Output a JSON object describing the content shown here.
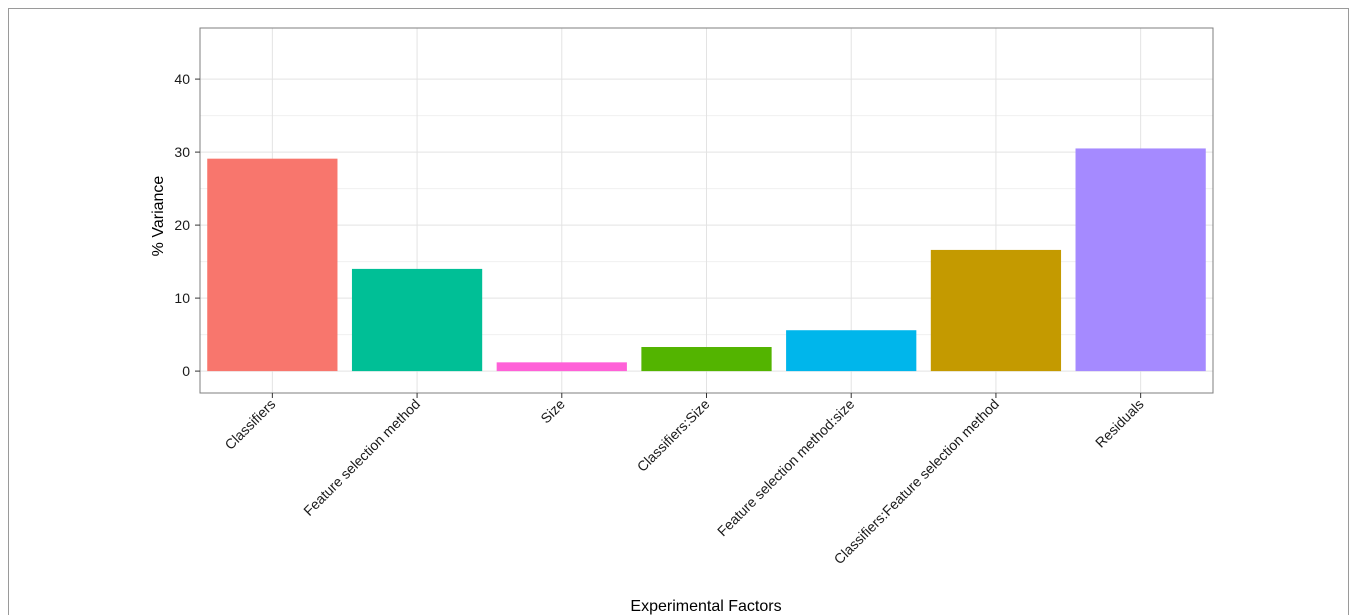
{
  "chart_data": {
    "type": "bar",
    "title": "",
    "xlabel": "Experimental Factors",
    "ylabel": "% Variance",
    "ylim": [
      -3,
      47
    ],
    "yticks": [
      0,
      10,
      20,
      30,
      40
    ],
    "grid": true,
    "legend": "none",
    "categories": [
      "Classifiers",
      "Feature selection method",
      "Size",
      "Classifiers:Size",
      "Feature selection method:size",
      "Classifiers:Feature selection method",
      "Residuals"
    ],
    "values": [
      29.1,
      14.0,
      1.2,
      3.3,
      5.6,
      16.6,
      30.5
    ],
    "colors": [
      "#F8766D",
      "#00BF96",
      "#FF61D8",
      "#53B400",
      "#00B6EB",
      "#C49A00",
      "#A58AFF"
    ]
  }
}
